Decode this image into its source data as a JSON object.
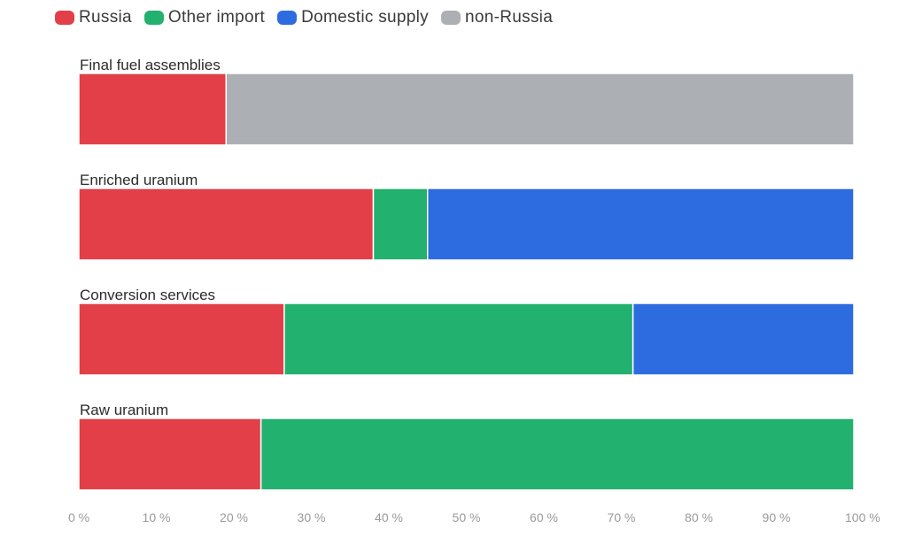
{
  "chart_data": {
    "type": "bar",
    "orientation": "horizontal",
    "stacked": true,
    "categories": [
      "Final fuel assemblies",
      "Enriched uranium",
      "Conversion services",
      "Raw uranium"
    ],
    "series": [
      {
        "name": "Russia",
        "color": "#e23f48",
        "values": [
          19,
          38,
          26.5,
          23.5
        ]
      },
      {
        "name": "Other import",
        "color": "#22b16e",
        "values": [
          0,
          7,
          45,
          76.5
        ]
      },
      {
        "name": "Domestic supply",
        "color": "#2d6be0",
        "values": [
          0,
          55,
          28.5,
          0
        ]
      },
      {
        "name": "non-Russia",
        "color": "#acafb4",
        "values": [
          81,
          0,
          0,
          0
        ]
      }
    ],
    "xlim": [
      0,
      100
    ],
    "xticks": [
      "0 %",
      "10 %",
      "20 %",
      "30 %",
      "40 %",
      "50 %",
      "60 %",
      "70 %",
      "80 %",
      "90 %",
      "100 %"
    ],
    "legend_position": "top-left",
    "grid": false
  }
}
